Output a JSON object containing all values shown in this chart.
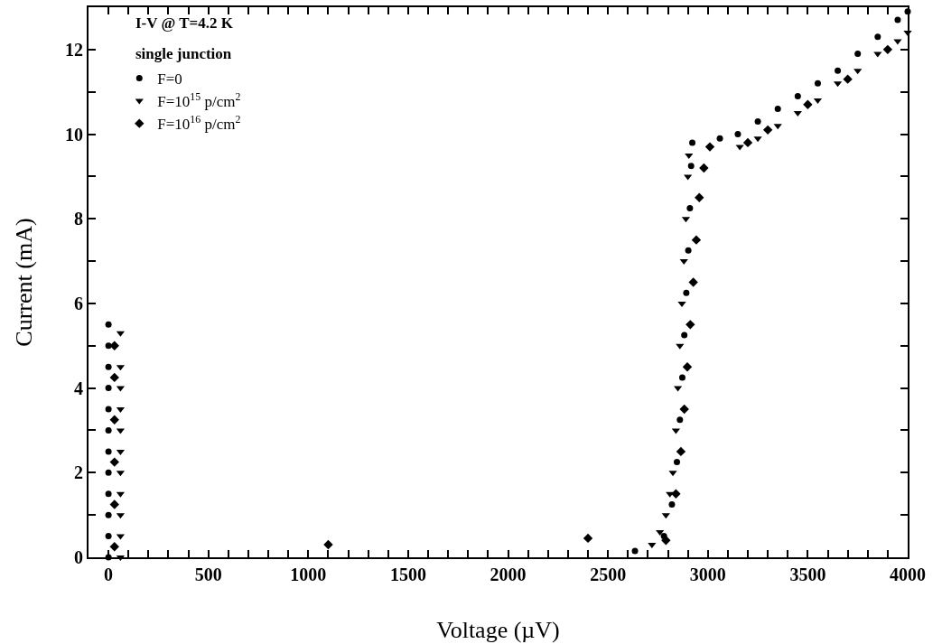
{
  "chart_data": {
    "type": "scatter",
    "xlabel": "Voltage (µV)",
    "ylabel": "Current (mA)",
    "annotations": [
      "I-V @ T=4.2 K",
      "single junction"
    ],
    "legend": "top left",
    "grid": false,
    "xlim": [
      -100,
      4000
    ],
    "xticks": [
      0,
      {
        "value": 100,
        "label": null
      },
      {
        "value": 200,
        "label": null
      },
      {
        "value": 300,
        "label": null
      },
      {
        "value": 400,
        "label": null
      },
      500,
      {
        "value": 600,
        "label": null
      },
      {
        "value": 700,
        "label": null
      },
      {
        "value": 800,
        "label": null
      },
      {
        "value": 900,
        "label": null
      },
      1000,
      {
        "value": 1100,
        "label": null
      },
      {
        "value": 1200,
        "label": null
      },
      {
        "value": 1300,
        "label": null
      },
      {
        "value": 1400,
        "label": null
      },
      1500,
      {
        "value": 1600,
        "label": null
      },
      {
        "value": 1700,
        "label": null
      },
      {
        "value": 1800,
        "label": null
      },
      {
        "value": 1900,
        "label": null
      },
      2000,
      {
        "value": 2100,
        "label": null
      },
      {
        "value": 2200,
        "label": null
      },
      {
        "value": 2300,
        "label": null
      },
      {
        "value": 2400,
        "label": null
      },
      2500,
      {
        "value": 2600,
        "label": null
      },
      {
        "value": 2700,
        "label": null
      },
      {
        "value": 2800,
        "label": null
      },
      {
        "value": 2900,
        "label": null
      },
      3000,
      {
        "value": 3100,
        "label": null
      },
      {
        "value": 3200,
        "label": null
      },
      {
        "value": 3300,
        "label": null
      },
      {
        "value": 3400,
        "label": null
      },
      3500,
      {
        "value": 3600,
        "label": null
      },
      {
        "value": 3700,
        "label": null
      },
      {
        "value": 3800,
        "label": null
      },
      {
        "value": 3900,
        "label": null
      },
      4000
    ],
    "ylim": [
      0,
      13
    ],
    "yticks": [
      0,
      {
        "value": 1,
        "label": null
      },
      2,
      {
        "value": 3,
        "label": null
      },
      4,
      {
        "value": 5,
        "label": null
      },
      6,
      {
        "value": 7,
        "label": null
      },
      8,
      {
        "value": 9,
        "label": null
      },
      10,
      {
        "value": 11,
        "label": null
      },
      12
    ],
    "series": [
      {
        "name": "F=0",
        "color": "#000000",
        "marker": "circle",
        "x": [
          0,
          0,
          0,
          0,
          0,
          0,
          0,
          0,
          0,
          0,
          0,
          0,
          2635,
          2780,
          2820,
          2845,
          2860,
          2872,
          2882,
          2892,
          2902,
          2910,
          2916,
          2922,
          3060,
          3150,
          3250,
          3350,
          3450,
          3550,
          3650,
          3750,
          3850,
          3950,
          4000
        ],
        "values": [
          0,
          0.5,
          1,
          1.5,
          2,
          2.5,
          3,
          3.5,
          4,
          4.5,
          5,
          5.5,
          0.15,
          0.5,
          1.25,
          2.25,
          3.25,
          4.25,
          5.25,
          6.25,
          7.25,
          8.25,
          9.25,
          9.8,
          9.9,
          10,
          10.3,
          10.6,
          10.9,
          11.2,
          11.5,
          11.9,
          12.3,
          12.7,
          12.9
        ]
      },
      {
        "name": "F=10$^{15}$ p/cm$^{2}$",
        "color": "#000000",
        "marker": "triangle",
        "x": [
          60,
          60,
          60,
          60,
          60,
          60,
          60,
          60,
          60,
          60,
          60,
          2720,
          2760,
          2790,
          2810,
          2825,
          2840,
          2850,
          2860,
          2870,
          2880,
          2890,
          2900,
          2905,
          3160,
          3250,
          3350,
          3450,
          3550,
          3650,
          3750,
          3850,
          3950,
          4000
        ],
        "values": [
          0,
          0.5,
          1,
          1.5,
          2,
          2.5,
          3,
          3.5,
          4,
          4.5,
          5.3,
          0.3,
          0.6,
          1,
          1.5,
          2,
          3,
          4,
          5,
          6,
          7,
          8,
          9,
          9.5,
          9.7,
          9.9,
          10.2,
          10.5,
          10.8,
          11.2,
          11.5,
          11.9,
          12.2,
          12.4
        ]
      },
      {
        "name": "F=10$^{16}$ p/cm$^{2}$",
        "color": "#000000",
        "marker": "diamond",
        "x": [
          30,
          30,
          30,
          30,
          30,
          30,
          1100,
          2400,
          2790,
          2840,
          2865,
          2882,
          2897,
          2912,
          2927,
          2942,
          2957,
          2980,
          3010,
          3200,
          3300,
          3500,
          3700,
          3900
        ],
        "values": [
          0.25,
          1.25,
          2.25,
          3.25,
          4.25,
          5,
          0.3,
          0.45,
          0.4,
          1.5,
          2.5,
          3.5,
          4.5,
          5.5,
          6.5,
          7.5,
          8.5,
          9.2,
          9.7,
          9.8,
          10.1,
          10.7,
          11.3,
          12
        ]
      }
    ]
  }
}
